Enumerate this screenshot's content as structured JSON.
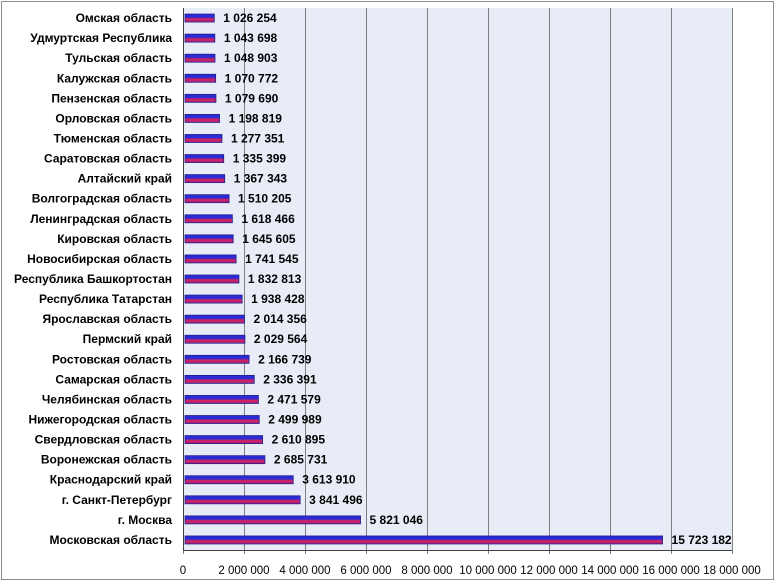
{
  "chart_data": {
    "type": "bar",
    "orientation": "horizontal",
    "categories": [
      "Омская область",
      "Удмуртская Республика",
      "Тульская область",
      "Калужская область",
      "Пензенская область",
      "Орловская область",
      "Тюменская область",
      "Саратовская область",
      "Алтайский край",
      "Волгоградская область",
      "Ленинградская область",
      "Кировская область",
      "Новосибирская область",
      "Республика Башкортостан",
      "Республика Татарстан",
      "Ярославская область",
      "Пермский край",
      "Ростовская область",
      "Самарская область",
      "Челябинская область",
      "Нижегородская область",
      "Свердловская область",
      "Воронежская область",
      "Краснодарский край",
      "г. Санкт-Петербург",
      "г. Москва",
      "Московская область"
    ],
    "values": [
      1026254,
      1043698,
      1048903,
      1070772,
      1079690,
      1198819,
      1277351,
      1335399,
      1367343,
      1510205,
      1618466,
      1645605,
      1741545,
      1832813,
      1938428,
      2014356,
      2029564,
      2166739,
      2336391,
      2471579,
      2499989,
      2610895,
      2685731,
      3613910,
      3841496,
      5821046,
      15723182
    ],
    "value_labels": [
      "1 026 254",
      "1 043 698",
      "1 048 903",
      "1 070 772",
      "1 079 690",
      "1 198 819",
      "1 277 351",
      "1 335 399",
      "1 367 343",
      "1 510 205",
      "1 618 466",
      "1 645 605",
      "1 741 545",
      "1 832 813",
      "1 938 428",
      "2 014 356",
      "2 029 564",
      "2 166 739",
      "2 336 391",
      "2 471 579",
      "2 499 989",
      "2 610 895",
      "2 685 731",
      "3 613 910",
      "3 841 496",
      "5 821 046",
      "15 723 182"
    ],
    "xticks": [
      0,
      2000000,
      4000000,
      6000000,
      8000000,
      10000000,
      12000000,
      14000000,
      16000000,
      18000000
    ],
    "xtick_labels": [
      "0",
      "2 000 000",
      "4 000 000",
      "6 000 000",
      "8 000 000",
      "10 000 000",
      "12 000 000",
      "14 000 000",
      "16 000 000",
      "18 000 000"
    ],
    "xlim": [
      0,
      18000000
    ],
    "title": "",
    "xlabel": "",
    "ylabel": "",
    "grid": true,
    "legend": false,
    "colors": {
      "bar_edge": "#1f1f8f",
      "bar_top": "#2b2bd6",
      "bar_mid": "#d1245e",
      "bar_bottom": "#b01f7a",
      "plot_bg": "#e7ecf6",
      "grid": "#7f7f7f",
      "frame": "#8c8c8c"
    }
  }
}
